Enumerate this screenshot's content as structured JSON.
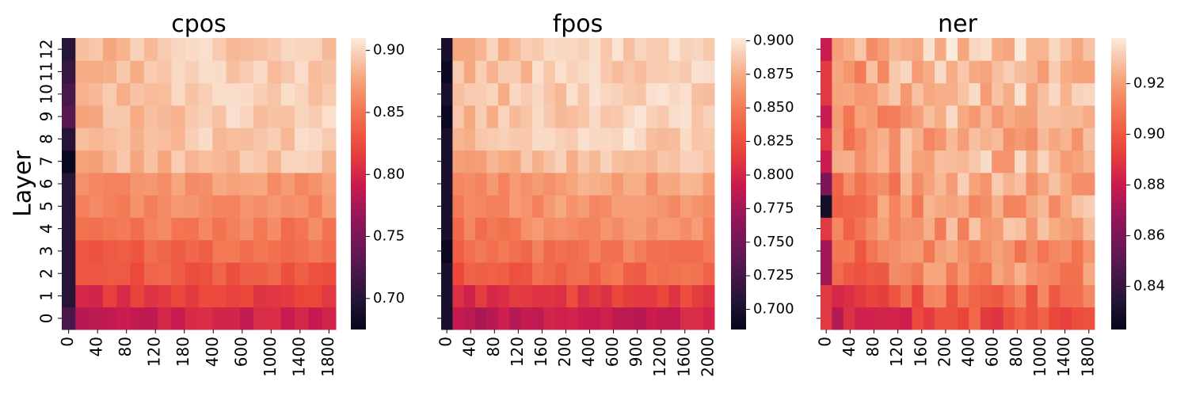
{
  "chart_data": [
    {
      "type": "heatmap",
      "title": "cpos",
      "ylabel": "Layer",
      "xlabel": "",
      "x_tick_labels": [
        "0",
        "40",
        "80",
        "120",
        "180",
        "400",
        "600",
        "1000",
        "1400",
        "1800"
      ],
      "y_tick_labels": [
        "0",
        "1",
        "2",
        "3",
        "4",
        "5",
        "6",
        "7",
        "8",
        "9",
        "10",
        "11",
        "12"
      ],
      "colorbar_ticks": [
        0.7,
        0.75,
        0.8,
        0.85,
        0.9
      ],
      "vmin": 0.675,
      "vmax": 0.91,
      "cols": 20,
      "layer_base": [
        0.795,
        0.815,
        0.835,
        0.845,
        0.855,
        0.865,
        0.87,
        0.89,
        0.895,
        0.895,
        0.895,
        0.895,
        0.895
      ],
      "col0": [
        0.72,
        0.7,
        0.7,
        0.7,
        0.7,
        0.7,
        0.7,
        0.68,
        0.7,
        0.73,
        0.72,
        0.71,
        0.7
      ],
      "colorscale": "rocket"
    },
    {
      "type": "heatmap",
      "title": "fpos",
      "ylabel": "",
      "xlabel": "",
      "x_tick_labels": [
        "0",
        "40",
        "80",
        "120",
        "160",
        "200",
        "400",
        "600",
        "900",
        "1200",
        "1600",
        "2000"
      ],
      "y_tick_labels": [],
      "colorbar_ticks": [
        0.7,
        0.725,
        0.75,
        0.775,
        0.8,
        0.825,
        0.85,
        0.875,
        0.9
      ],
      "vmin": 0.685,
      "vmax": 0.902,
      "cols": 24,
      "layer_base": [
        0.795,
        0.815,
        0.84,
        0.85,
        0.86,
        0.865,
        0.87,
        0.885,
        0.89,
        0.89,
        0.89,
        0.89,
        0.89
      ],
      "col0": [
        0.7,
        0.7,
        0.7,
        0.69,
        0.7,
        0.7,
        0.7,
        0.7,
        0.7,
        0.69,
        0.7,
        0.69,
        0.7
      ],
      "colorscale": "rocket"
    },
    {
      "type": "heatmap",
      "title": "ner",
      "ylabel": "",
      "xlabel": "",
      "x_tick_labels": [
        "0",
        "40",
        "80",
        "120",
        "160",
        "200",
        "400",
        "600",
        "800",
        "1000",
        "1400",
        "1800"
      ],
      "y_tick_labels": [],
      "colorbar_ticks": [
        0.84,
        0.86,
        0.88,
        0.9,
        0.92
      ],
      "vmin": 0.823,
      "vmax": 0.938,
      "cols": 24,
      "layer_base": [
        0.895,
        0.905,
        0.915,
        0.918,
        0.92,
        0.922,
        0.922,
        0.925,
        0.925,
        0.925,
        0.926,
        0.928,
        0.93
      ],
      "col0": [
        0.89,
        0.89,
        0.87,
        0.87,
        0.89,
        0.83,
        0.86,
        0.88,
        0.89,
        0.88,
        0.89,
        0.89,
        0.88
      ],
      "colorscale": "rocket"
    }
  ]
}
